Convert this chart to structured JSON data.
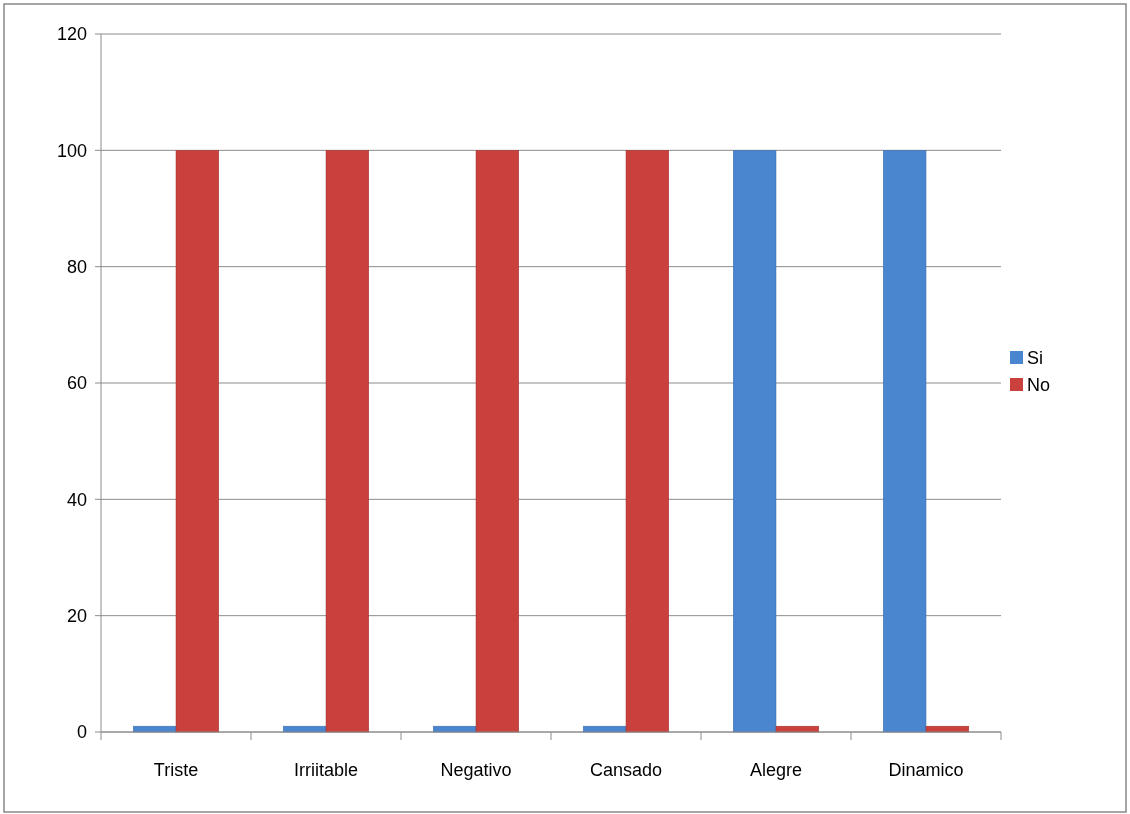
{
  "chart_data": {
    "type": "bar",
    "categories": [
      "Triste",
      "Irriitable",
      "Negativo",
      "Cansado",
      "Alegre",
      "Dinamico"
    ],
    "series": [
      {
        "name": "Si",
        "color": "#4a85cf",
        "values": [
          1,
          1,
          1,
          1,
          100,
          100
        ]
      },
      {
        "name": "No",
        "color": "#c9403d",
        "values": [
          100,
          100,
          100,
          100,
          1,
          1
        ]
      }
    ],
    "ylim": [
      0,
      120
    ],
    "yticks": [
      0,
      20,
      40,
      60,
      80,
      100,
      120
    ],
    "grid": "y",
    "legend": "right"
  }
}
